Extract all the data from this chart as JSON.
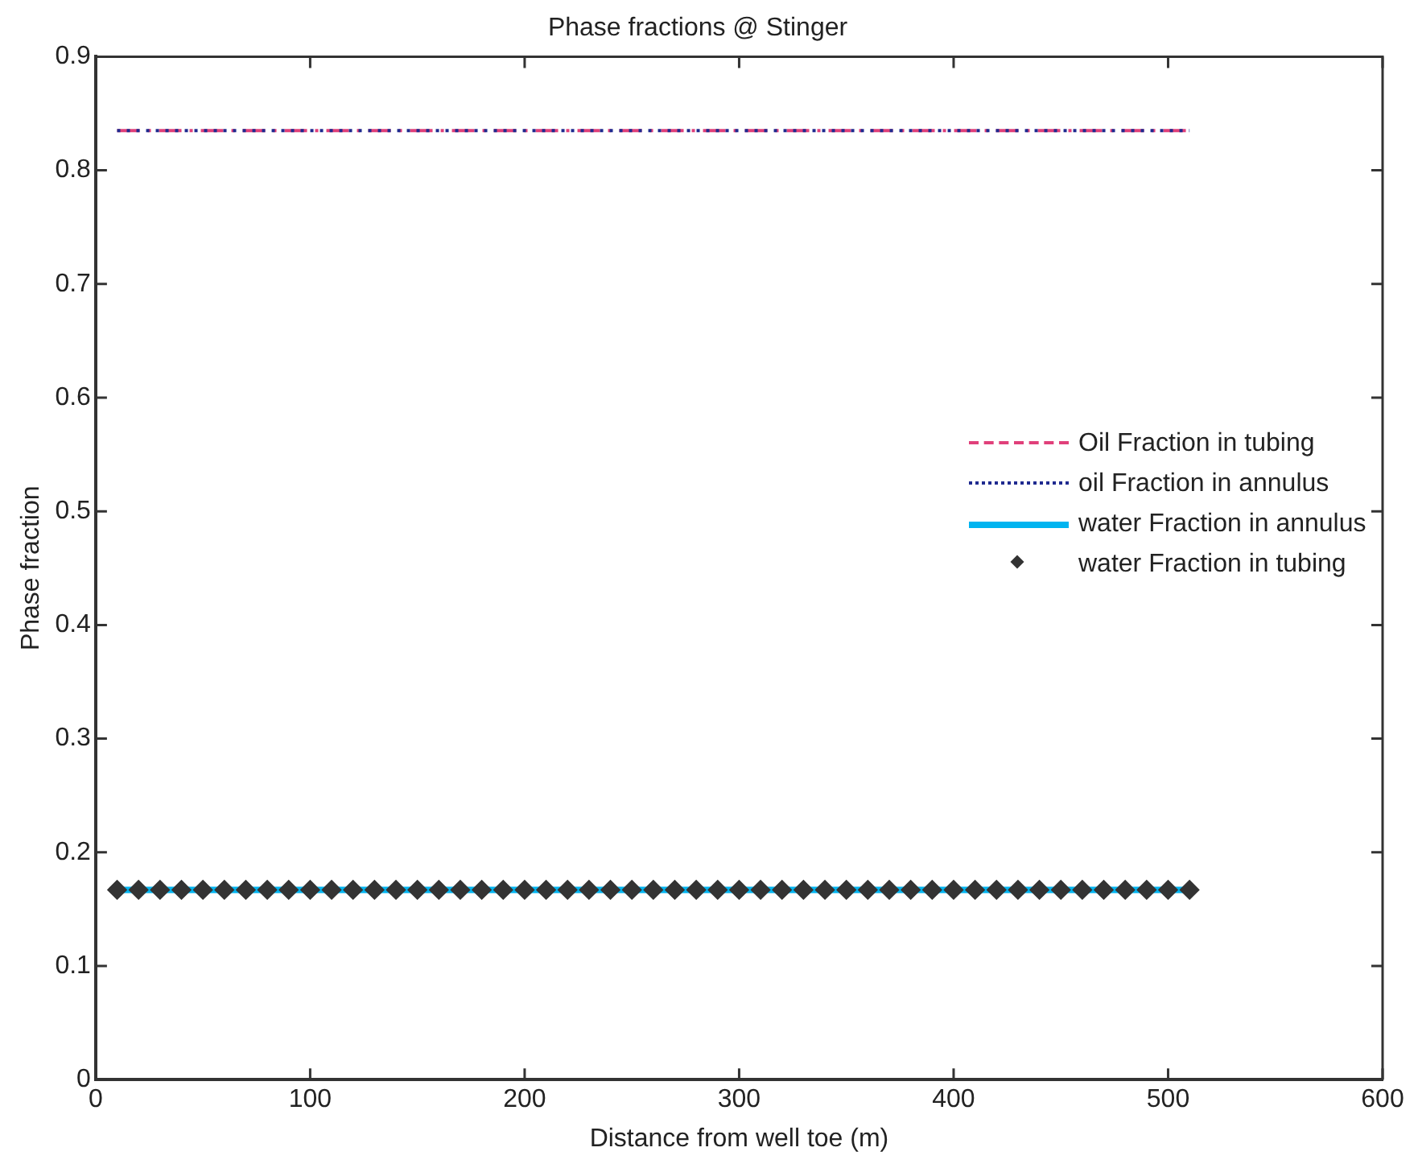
{
  "chart_data": {
    "type": "line",
    "title": "Phase fractions @ Stinger",
    "xlabel": "Distance from well toe (m)",
    "ylabel": "Phase fraction",
    "x": [
      10,
      20,
      30,
      40,
      50,
      60,
      70,
      80,
      90,
      100,
      110,
      120,
      130,
      140,
      150,
      160,
      170,
      180,
      190,
      200,
      210,
      220,
      230,
      240,
      250,
      260,
      270,
      280,
      290,
      300,
      310,
      320,
      330,
      340,
      350,
      360,
      370,
      380,
      390,
      400,
      410,
      420,
      430,
      440,
      450,
      460,
      470,
      480,
      490,
      500,
      510
    ],
    "xlim": [
      0,
      600
    ],
    "xticks": [
      0,
      100,
      200,
      300,
      400,
      500,
      600
    ],
    "ylim": [
      0,
      0.9
    ],
    "yticks": [
      0,
      0.1,
      0.2,
      0.3,
      0.4,
      0.5,
      0.6,
      0.7,
      0.8,
      0.9
    ],
    "grid": false,
    "legend": "right",
    "series": [
      {
        "name": "Oil Fraction in tubing",
        "color": "#e0407a",
        "line_style": "dashed",
        "marker": "none",
        "values": [
          0.835,
          0.835,
          0.835,
          0.835,
          0.835,
          0.835,
          0.835,
          0.835,
          0.835,
          0.835,
          0.835,
          0.835,
          0.835,
          0.835,
          0.835,
          0.835,
          0.835,
          0.835,
          0.835,
          0.835,
          0.835,
          0.835,
          0.835,
          0.835,
          0.835,
          0.835,
          0.835,
          0.835,
          0.835,
          0.835,
          0.835,
          0.835,
          0.835,
          0.835,
          0.835,
          0.835,
          0.835,
          0.835,
          0.835,
          0.835,
          0.835,
          0.835,
          0.835,
          0.835,
          0.835,
          0.835,
          0.835,
          0.835,
          0.835,
          0.835,
          0.835
        ]
      },
      {
        "name": "oil Fraction in annulus",
        "color": "#1f2a8f",
        "line_style": "dotted",
        "marker": "none",
        "values": [
          0.835,
          0.835,
          0.835,
          0.835,
          0.835,
          0.835,
          0.835,
          0.835,
          0.835,
          0.835,
          0.835,
          0.835,
          0.835,
          0.835,
          0.835,
          0.835,
          0.835,
          0.835,
          0.835,
          0.835,
          0.835,
          0.835,
          0.835,
          0.835,
          0.835,
          0.835,
          0.835,
          0.835,
          0.835,
          0.835,
          0.835,
          0.835,
          0.835,
          0.835,
          0.835,
          0.835,
          0.835,
          0.835,
          0.835,
          0.835,
          0.835,
          0.835,
          0.835,
          0.835,
          0.835,
          0.835,
          0.835,
          0.835,
          0.835,
          0.835,
          0.835
        ]
      },
      {
        "name": "water Fraction in annulus",
        "color": "#00b4f0",
        "line_style": "solid",
        "marker": "none",
        "values": [
          0.167,
          0.167,
          0.167,
          0.167,
          0.167,
          0.167,
          0.167,
          0.167,
          0.167,
          0.167,
          0.167,
          0.167,
          0.167,
          0.167,
          0.167,
          0.167,
          0.167,
          0.167,
          0.167,
          0.167,
          0.167,
          0.167,
          0.167,
          0.167,
          0.167,
          0.167,
          0.167,
          0.167,
          0.167,
          0.167,
          0.167,
          0.167,
          0.167,
          0.167,
          0.167,
          0.167,
          0.167,
          0.167,
          0.167,
          0.167,
          0.167,
          0.167,
          0.167,
          0.167,
          0.167,
          0.167,
          0.167,
          0.167,
          0.167,
          0.167,
          0.167
        ]
      },
      {
        "name": "water Fraction in tubing",
        "color": "#333333",
        "type": "scatter",
        "marker": "diamond",
        "values": [
          0.167,
          0.167,
          0.167,
          0.167,
          0.167,
          0.167,
          0.167,
          0.167,
          0.167,
          0.167,
          0.167,
          0.167,
          0.167,
          0.167,
          0.167,
          0.167,
          0.167,
          0.167,
          0.167,
          0.167,
          0.167,
          0.167,
          0.167,
          0.167,
          0.167,
          0.167,
          0.167,
          0.167,
          0.167,
          0.167,
          0.167,
          0.167,
          0.167,
          0.167,
          0.167,
          0.167,
          0.167,
          0.167,
          0.167,
          0.167,
          0.167,
          0.167,
          0.167,
          0.167,
          0.167,
          0.167,
          0.167,
          0.167,
          0.167,
          0.167,
          0.167
        ]
      }
    ]
  }
}
